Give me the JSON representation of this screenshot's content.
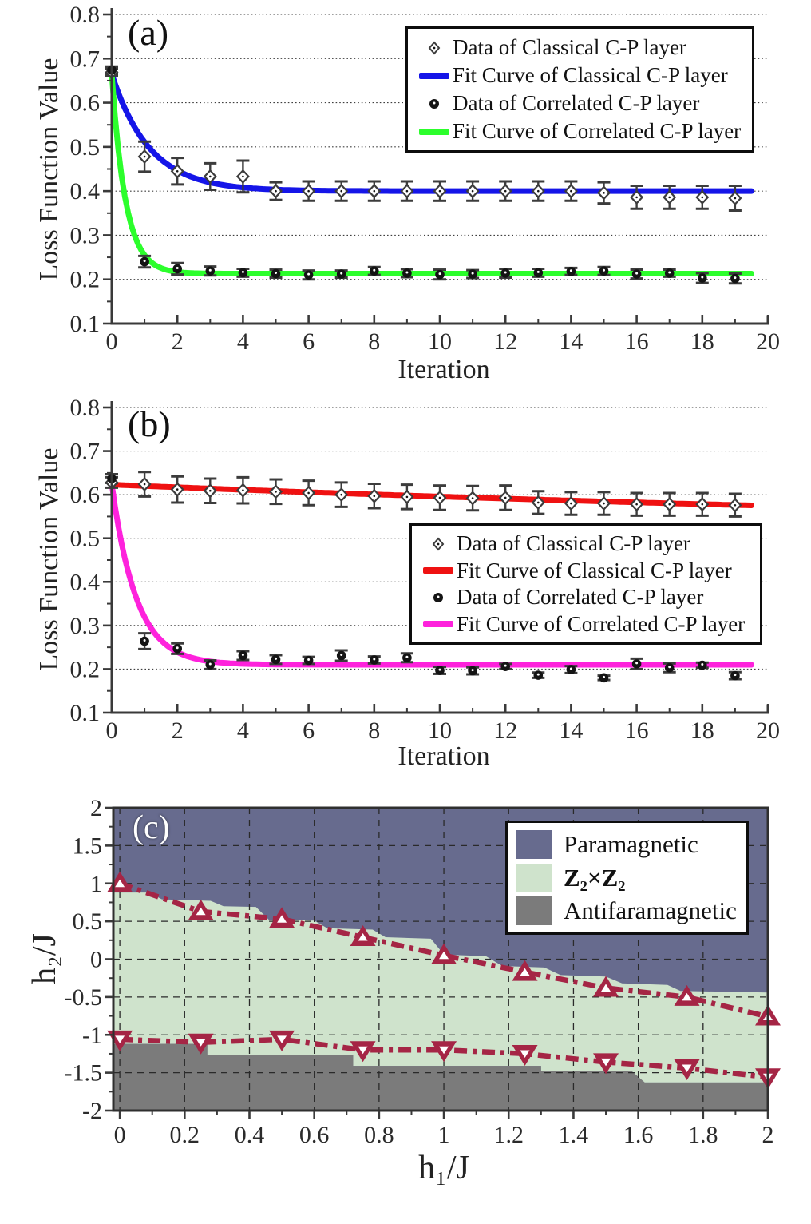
{
  "colors": {
    "marker": "#3c3c3c",
    "dot": "#141414",
    "axis": "#3a3a3a",
    "grid_dotted": "#3f3f3f",
    "grid_dashed": "#2a2a2a",
    "boundary": "#a52545",
    "tick_text": "#2b2b2b"
  },
  "chart_data": [
    {
      "type": "scatter",
      "tag": "(a)",
      "xlabel": "Iteration",
      "ylabel": "Loss Function Value",
      "xlim": [
        0,
        20
      ],
      "ylim": [
        0.1,
        0.8
      ],
      "xticks": [
        0,
        2,
        4,
        6,
        8,
        10,
        12,
        14,
        16,
        18,
        20
      ],
      "xtick_labels": [
        "0",
        "2",
        "4",
        "6",
        "8",
        "10",
        "12",
        "14",
        "16",
        "18",
        "20"
      ],
      "yticks": [
        0.1,
        0.2,
        0.3,
        0.4,
        0.5,
        0.6,
        0.7,
        0.8
      ],
      "ytick_labels": [
        "0.1",
        "0.2",
        "0.3",
        "0.4",
        "0.5",
        "0.6",
        "0.7",
        "0.8"
      ],
      "series": [
        {
          "name": "Data of Classical C-P layer",
          "marker": "open-diamond",
          "x": [
            0,
            1,
            2,
            3,
            4,
            5,
            6,
            7,
            8,
            9,
            10,
            11,
            12,
            13,
            14,
            15,
            16,
            17,
            18,
            19
          ],
          "y": [
            0.669,
            0.478,
            0.445,
            0.433,
            0.433,
            0.4,
            0.4,
            0.4,
            0.4,
            0.4,
            0.4,
            0.4,
            0.4,
            0.4,
            0.4,
            0.396,
            0.386,
            0.386,
            0.386,
            0.384
          ],
          "err": [
            0.008,
            0.034,
            0.03,
            0.03,
            0.036,
            0.02,
            0.022,
            0.022,
            0.022,
            0.022,
            0.022,
            0.022,
            0.022,
            0.022,
            0.022,
            0.024,
            0.026,
            0.026,
            0.026,
            0.028
          ]
        },
        {
          "name": "Data of Correlated C-P layer",
          "marker": "filled-circle",
          "x": [
            0,
            1,
            2,
            3,
            4,
            5,
            6,
            7,
            8,
            9,
            10,
            11,
            12,
            13,
            14,
            15,
            16,
            17,
            18,
            19
          ],
          "y": [
            0.674,
            0.24,
            0.224,
            0.219,
            0.215,
            0.213,
            0.21,
            0.212,
            0.219,
            0.214,
            0.211,
            0.212,
            0.214,
            0.215,
            0.218,
            0.219,
            0.212,
            0.214,
            0.203,
            0.202
          ],
          "err": [
            0.008,
            0.013,
            0.013,
            0.01,
            0.009,
            0.009,
            0.01,
            0.008,
            0.009,
            0.009,
            0.011,
            0.009,
            0.01,
            0.009,
            0.008,
            0.009,
            0.01,
            0.008,
            0.011,
            0.011
          ]
        }
      ],
      "fits": [
        {
          "name": "Fit Curve of Classical C-P layer",
          "color": "#1515e8",
          "model": "exp",
          "y0": 0.665,
          "plateau": 0.4,
          "tau": 1.15,
          "xmax": 19.5
        },
        {
          "name": "Fit Curve of Correlated C-P layer",
          "color": "#2cfe2c",
          "model": "exp",
          "y0": 0.665,
          "plateau": 0.213,
          "tau": 0.42,
          "xmax": 19.5
        }
      ],
      "legend": {
        "items": [
          {
            "label": "Data of Classical C-P layer"
          },
          {
            "label": "Fit Curve of Classical C-P layer"
          },
          {
            "label": "Data of Correlated C-P layer"
          },
          {
            "label": "Fit Curve of Correlated C-P layer"
          }
        ]
      }
    },
    {
      "type": "scatter",
      "tag": "(b)",
      "xlabel": "Iteration",
      "ylabel": "Loss Function Value",
      "xlim": [
        0,
        20
      ],
      "ylim": [
        0.1,
        0.8
      ],
      "xticks": [
        0,
        2,
        4,
        6,
        8,
        10,
        12,
        14,
        16,
        18,
        20
      ],
      "xtick_labels": [
        "0",
        "2",
        "4",
        "6",
        "8",
        "10",
        "12",
        "14",
        "16",
        "18",
        "20"
      ],
      "yticks": [
        0.1,
        0.2,
        0.3,
        0.4,
        0.5,
        0.6,
        0.7,
        0.8
      ],
      "ytick_labels": [
        "0.1",
        "0.2",
        "0.3",
        "0.4",
        "0.5",
        "0.6",
        "0.7",
        "0.8"
      ],
      "series": [
        {
          "name": "Data of Classical C-P layer",
          "marker": "open-diamond",
          "x": [
            0,
            1,
            2,
            3,
            4,
            5,
            6,
            7,
            8,
            9,
            10,
            11,
            12,
            13,
            14,
            15,
            16,
            17,
            18,
            19
          ],
          "y": [
            0.628,
            0.624,
            0.612,
            0.609,
            0.61,
            0.607,
            0.604,
            0.6,
            0.597,
            0.595,
            0.593,
            0.592,
            0.593,
            0.582,
            0.58,
            0.58,
            0.578,
            0.578,
            0.578,
            0.576
          ],
          "err": [
            0.012,
            0.028,
            0.03,
            0.028,
            0.03,
            0.028,
            0.028,
            0.028,
            0.028,
            0.028,
            0.028,
            0.028,
            0.028,
            0.026,
            0.026,
            0.026,
            0.026,
            0.026,
            0.026,
            0.026
          ]
        },
        {
          "name": "Data of Correlated C-P layer",
          "marker": "filled-circle",
          "x": [
            0,
            1,
            2,
            3,
            4,
            5,
            6,
            7,
            8,
            9,
            10,
            11,
            12,
            13,
            14,
            15,
            16,
            17,
            18,
            19
          ],
          "y": [
            0.637,
            0.264,
            0.247,
            0.21,
            0.231,
            0.222,
            0.22,
            0.231,
            0.221,
            0.226,
            0.197,
            0.196,
            0.206,
            0.186,
            0.199,
            0.18,
            0.212,
            0.203,
            0.209,
            0.185
          ],
          "err": [
            0.01,
            0.018,
            0.012,
            0.01,
            0.01,
            0.01,
            0.008,
            0.012,
            0.008,
            0.01,
            0.008,
            0.008,
            0.006,
            0.006,
            0.008,
            0.005,
            0.012,
            0.01,
            0.006,
            0.008
          ]
        }
      ],
      "fits": [
        {
          "name": "Fit Curve of Classical C-P layer",
          "color": "#ef1111",
          "model": "exp",
          "y0": 0.623,
          "plateau": 0.5,
          "tau": 40,
          "xmax": 19.5
        },
        {
          "name": "Fit Curve of Correlated C-P layer",
          "color": "#fe22dc",
          "model": "exp",
          "y0": 0.625,
          "plateau": 0.21,
          "tau": 0.75,
          "xmax": 19.5
        }
      ],
      "legend": {
        "items": [
          {
            "label": "Data of Classical C-P layer"
          },
          {
            "label": "Fit Curve of Classical C-P layer"
          },
          {
            "label": "Data of Correlated C-P layer"
          },
          {
            "label": "Fit Curve of Correlated C-P layer"
          }
        ]
      }
    },
    {
      "type": "phase-diagram",
      "tag": "(c)",
      "xlabel": "h₁/J",
      "ylabel": "h₂/J",
      "xlim": [
        -0.02,
        2
      ],
      "ylim": [
        -2,
        2
      ],
      "xticks": [
        0,
        0.2,
        0.4,
        0.6,
        0.8,
        1,
        1.2,
        1.4,
        1.6,
        1.8,
        2
      ],
      "xtick_labels": [
        "0",
        "0.2",
        "0.4",
        "0.6",
        "0.8",
        "1",
        "1.2",
        "1.4",
        "1.6",
        "1.8",
        "2"
      ],
      "yticks": [
        -2,
        -1.5,
        -1,
        -0.5,
        0,
        0.5,
        1,
        1.5,
        2
      ],
      "ytick_labels": [
        "-2",
        "-1.5",
        "-1",
        "-0.5",
        "0",
        "0.5",
        "1",
        "1.5",
        "2"
      ],
      "regions": [
        {
          "name": "Paramagnetic",
          "color": "#676b8e"
        },
        {
          "name": "Z₂×Z₂",
          "color": "#cfe3cc",
          "upper_edge": [
            [
              -0.02,
              0.88
            ],
            [
              0.09,
              0.88
            ],
            [
              0.13,
              0.79
            ],
            [
              0.28,
              0.77
            ],
            [
              0.32,
              0.7
            ],
            [
              0.42,
              0.69
            ],
            [
              0.46,
              0.52
            ],
            [
              0.6,
              0.51
            ],
            [
              0.64,
              0.41
            ],
            [
              0.78,
              0.39
            ],
            [
              0.82,
              0.29
            ],
            [
              0.96,
              0.27
            ],
            [
              1.0,
              0.06
            ],
            [
              1.13,
              0.04
            ],
            [
              1.18,
              -0.09
            ],
            [
              1.31,
              -0.11
            ],
            [
              1.36,
              -0.21
            ],
            [
              1.5,
              -0.23
            ],
            [
              1.55,
              -0.32
            ],
            [
              1.69,
              -0.34
            ],
            [
              1.73,
              -0.42
            ],
            [
              2.0,
              -0.44
            ]
          ]
        },
        {
          "name": "Antifaramagnetic",
          "color": "#7b7b7b",
          "upper_edge": [
            [
              -0.02,
              -1.12
            ],
            [
              0.27,
              -1.12
            ],
            [
              0.27,
              -1.27
            ],
            [
              0.72,
              -1.27
            ],
            [
              0.72,
              -1.41
            ],
            [
              1.3,
              -1.41
            ],
            [
              1.3,
              -1.48
            ],
            [
              1.58,
              -1.48
            ],
            [
              1.62,
              -1.63
            ],
            [
              2.0,
              -1.63
            ]
          ]
        }
      ],
      "boundaries": [
        {
          "name": "upper-phase-boundary",
          "marker": "triangle-up",
          "color": "#a52545",
          "x": [
            0,
            0.25,
            0.5,
            0.75,
            1.0,
            1.25,
            1.5,
            1.75,
            2.0
          ],
          "y": [
            1.0,
            0.63,
            0.53,
            0.29,
            0.05,
            -0.17,
            -0.38,
            -0.5,
            -0.76
          ]
        },
        {
          "name": "lower-phase-boundary",
          "marker": "triangle-down",
          "color": "#a52545",
          "x": [
            0,
            0.25,
            0.5,
            0.75,
            1.0,
            1.25,
            1.5,
            1.75,
            2.0
          ],
          "y": [
            -1.06,
            -1.1,
            -1.06,
            -1.2,
            -1.2,
            -1.25,
            -1.36,
            -1.44,
            -1.56
          ]
        }
      ],
      "legend": {
        "items": [
          {
            "label": "Paramagnetic"
          },
          {
            "label": "Z₂×Z₂"
          },
          {
            "label": "Antifaramagnetic"
          }
        ]
      }
    }
  ]
}
